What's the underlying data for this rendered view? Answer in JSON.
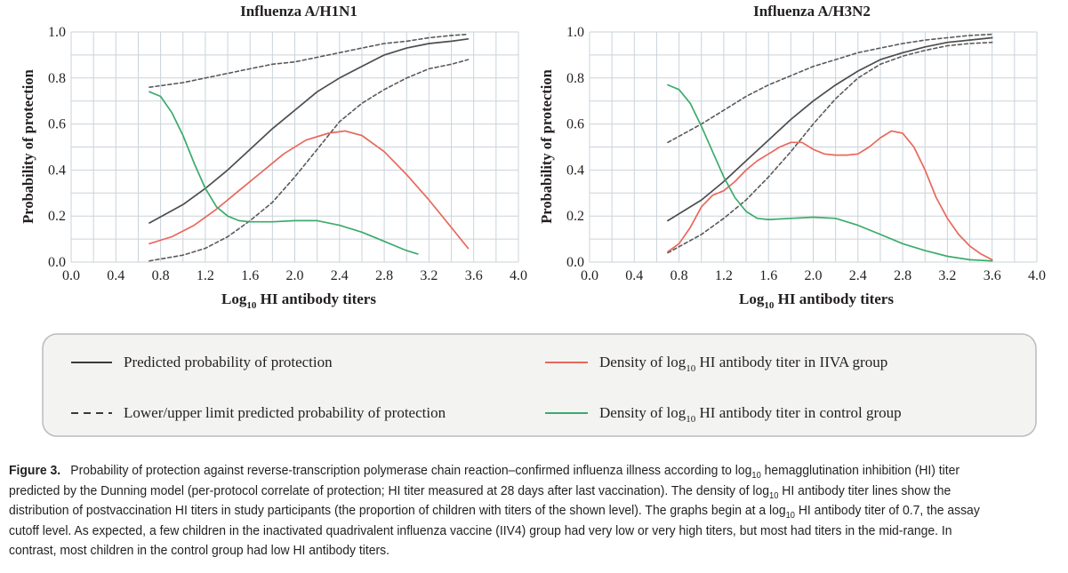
{
  "chart_data": [
    {
      "type": "line",
      "title": "Influenza A/H1N1",
      "xlabel": "Log10 HI antibody titers",
      "ylabel": "Probability of protection",
      "xlim": [
        0.0,
        4.0
      ],
      "ylim": [
        0.0,
        1.0
      ],
      "xticks": [
        "0.0",
        "0.4",
        "0.8",
        "1.2",
        "1.6",
        "2.0",
        "2.4",
        "2.8",
        "3.2",
        "3.6",
        "4.0"
      ],
      "yticks": [
        "0.0",
        "0.2",
        "0.4",
        "0.6",
        "0.8",
        "1.0"
      ],
      "grid": true,
      "series": [
        {
          "name": "Predicted probability of protection",
          "style": "solid",
          "color": "#4d4d4d",
          "x": [
            0.7,
            1.0,
            1.2,
            1.4,
            1.6,
            1.8,
            2.0,
            2.2,
            2.4,
            2.6,
            2.8,
            3.0,
            3.2,
            3.4,
            3.55
          ],
          "y": [
            0.17,
            0.25,
            0.32,
            0.4,
            0.49,
            0.58,
            0.66,
            0.74,
            0.8,
            0.85,
            0.9,
            0.93,
            0.95,
            0.96,
            0.97
          ]
        },
        {
          "name": "Lower/upper limit predicted probability of protection",
          "style": "dashed",
          "color": "#5a5a5a",
          "x": [
            0.7,
            1.0,
            1.2,
            1.4,
            1.6,
            1.8,
            2.0,
            2.2,
            2.4,
            2.6,
            2.8,
            3.0,
            3.2,
            3.4,
            3.55
          ],
          "y": [
            0.005,
            0.03,
            0.06,
            0.11,
            0.18,
            0.26,
            0.37,
            0.49,
            0.61,
            0.69,
            0.75,
            0.8,
            0.84,
            0.86,
            0.88
          ]
        },
        {
          "name": "Lower/upper limit predicted probability of protection",
          "style": "dashed",
          "color": "#5a5a5a",
          "x": [
            0.7,
            1.0,
            1.2,
            1.4,
            1.6,
            1.8,
            2.0,
            2.2,
            2.4,
            2.6,
            2.8,
            3.0,
            3.2,
            3.4,
            3.55
          ],
          "y": [
            0.76,
            0.78,
            0.8,
            0.82,
            0.84,
            0.86,
            0.87,
            0.89,
            0.91,
            0.93,
            0.95,
            0.96,
            0.975,
            0.985,
            0.99
          ]
        },
        {
          "name": "Density of log10 HI antibody titer in IIVA group",
          "style": "solid",
          "color": "#e8685c",
          "x": [
            0.7,
            0.9,
            1.1,
            1.3,
            1.5,
            1.7,
            1.9,
            2.1,
            2.3,
            2.45,
            2.6,
            2.8,
            3.0,
            3.2,
            3.4,
            3.55
          ],
          "y": [
            0.08,
            0.11,
            0.16,
            0.23,
            0.31,
            0.39,
            0.47,
            0.53,
            0.56,
            0.57,
            0.55,
            0.48,
            0.38,
            0.27,
            0.15,
            0.06
          ]
        },
        {
          "name": "Density of log10 HI antibody titer in control group",
          "style": "solid",
          "color": "#3cab6a",
          "x": [
            0.7,
            0.8,
            0.9,
            1.0,
            1.1,
            1.2,
            1.3,
            1.4,
            1.5,
            1.6,
            1.8,
            2.0,
            2.2,
            2.4,
            2.6,
            2.8,
            3.0,
            3.1
          ],
          "y": [
            0.74,
            0.72,
            0.65,
            0.55,
            0.43,
            0.32,
            0.24,
            0.2,
            0.18,
            0.175,
            0.175,
            0.18,
            0.18,
            0.16,
            0.13,
            0.09,
            0.05,
            0.035
          ]
        }
      ]
    },
    {
      "type": "line",
      "title": "Influenza A/H3N2",
      "xlabel": "Log10 HI antibody titers",
      "ylabel": "Probability of protection",
      "xlim": [
        0.0,
        4.0
      ],
      "ylim": [
        0.0,
        1.0
      ],
      "xticks": [
        "0.0",
        "0.4",
        "0.8",
        "1.2",
        "1.6",
        "2.0",
        "2.4",
        "2.8",
        "3.2",
        "3.6",
        "4.0"
      ],
      "yticks": [
        "0.0",
        "0.2",
        "0.4",
        "0.6",
        "0.8",
        "1.0"
      ],
      "grid": true,
      "series": [
        {
          "name": "Predicted probability of protection",
          "style": "solid",
          "color": "#4d4d4d",
          "x": [
            0.7,
            1.0,
            1.2,
            1.4,
            1.6,
            1.8,
            2.0,
            2.2,
            2.4,
            2.6,
            2.8,
            3.0,
            3.2,
            3.4,
            3.6
          ],
          "y": [
            0.18,
            0.27,
            0.35,
            0.44,
            0.53,
            0.62,
            0.7,
            0.77,
            0.83,
            0.88,
            0.91,
            0.935,
            0.955,
            0.965,
            0.975
          ]
        },
        {
          "name": "Lower/upper limit predicted probability of protection",
          "style": "dashed",
          "color": "#5a5a5a",
          "x": [
            0.7,
            1.0,
            1.2,
            1.4,
            1.6,
            1.8,
            2.0,
            2.2,
            2.4,
            2.6,
            2.8,
            3.0,
            3.2,
            3.4,
            3.6
          ],
          "y": [
            0.04,
            0.12,
            0.19,
            0.27,
            0.37,
            0.48,
            0.6,
            0.71,
            0.8,
            0.86,
            0.895,
            0.92,
            0.94,
            0.95,
            0.955
          ]
        },
        {
          "name": "Lower/upper limit predicted probability of protection",
          "style": "dashed",
          "color": "#5a5a5a",
          "x": [
            0.7,
            1.0,
            1.2,
            1.4,
            1.6,
            1.8,
            2.0,
            2.2,
            2.4,
            2.6,
            2.8,
            3.0,
            3.2,
            3.4,
            3.6
          ],
          "y": [
            0.52,
            0.6,
            0.66,
            0.72,
            0.77,
            0.81,
            0.85,
            0.88,
            0.91,
            0.93,
            0.95,
            0.965,
            0.975,
            0.985,
            0.99
          ]
        },
        {
          "name": "Density of log10 HI antibody titer in IIVA group",
          "style": "solid",
          "color": "#e8685c",
          "x": [
            0.7,
            0.8,
            0.9,
            1.0,
            1.1,
            1.2,
            1.3,
            1.4,
            1.5,
            1.6,
            1.7,
            1.8,
            1.9,
            2.0,
            2.1,
            2.2,
            2.3,
            2.4,
            2.5,
            2.6,
            2.7,
            2.8,
            2.9,
            3.0,
            3.1,
            3.2,
            3.3,
            3.4,
            3.5,
            3.6
          ],
          "y": [
            0.045,
            0.08,
            0.15,
            0.24,
            0.29,
            0.31,
            0.35,
            0.4,
            0.44,
            0.47,
            0.5,
            0.52,
            0.52,
            0.49,
            0.47,
            0.465,
            0.465,
            0.47,
            0.5,
            0.54,
            0.57,
            0.56,
            0.5,
            0.4,
            0.28,
            0.19,
            0.12,
            0.07,
            0.035,
            0.01
          ]
        },
        {
          "name": "Density of log10 HI antibody titer in control group",
          "style": "solid",
          "color": "#3cab6a",
          "x": [
            0.7,
            0.8,
            0.9,
            1.0,
            1.1,
            1.2,
            1.3,
            1.4,
            1.5,
            1.6,
            1.8,
            2.0,
            2.2,
            2.4,
            2.6,
            2.8,
            3.0,
            3.2,
            3.4,
            3.6
          ],
          "y": [
            0.77,
            0.75,
            0.69,
            0.59,
            0.48,
            0.37,
            0.28,
            0.22,
            0.19,
            0.185,
            0.19,
            0.195,
            0.19,
            0.16,
            0.12,
            0.08,
            0.05,
            0.025,
            0.01,
            0.005
          ]
        }
      ]
    }
  ],
  "axis": {
    "ylabel": "Probability of protection",
    "xlabel_pre": "Log",
    "xlabel_sub": "10",
    "xlabel_post": " HI antibody titers"
  },
  "legend": {
    "items": [
      {
        "text": "Predicted probability of protection",
        "style": "solid",
        "color": "#3a3a3a"
      },
      {
        "text": "Lower/upper limit predicted probability of protection",
        "style": "dashed",
        "color": "#3a3a3a"
      },
      {
        "pre": "Density of log",
        "sub": "10",
        "post": " HI antibody titer in IIVA group",
        "style": "solid",
        "color": "#e8685c"
      },
      {
        "pre": "Density of log",
        "sub": "10",
        "post": " HI antibody titer in control group",
        "style": "solid",
        "color": "#3cab6a"
      }
    ]
  },
  "caption": {
    "label": "Figure 3.",
    "t1": "Probability of protection against reverse-transcription polymerase chain reaction–confirmed influenza illness according to log",
    "s1": "10",
    "t2": " hemagglutination inhibition (HI) titer predicted by the Dunning model (per-protocol correlate of protection; HI titer measured at 28 days after last vaccination). The density of log",
    "s2": "10",
    "t3": " HI antibody titer lines show the distribution of postvaccination HI titers in study participants (the proportion of children with titers of the shown level). The graphs begin at a log",
    "s3": "10",
    "t4": " HI antibody titer of 0.7, the assay cutoff level. As expected, a few children in the inactivated quadrivalent influenza vaccine (IIV4) group had very low or very high titers, but most had titers in the mid-range. In contrast, most children in the control group had low HI antibody titers."
  },
  "colors": {
    "grid": "#c9d3da",
    "axis_text": "#231f20",
    "legend_border": "#b8bcbe",
    "legend_bg": "#f3f3f2"
  }
}
